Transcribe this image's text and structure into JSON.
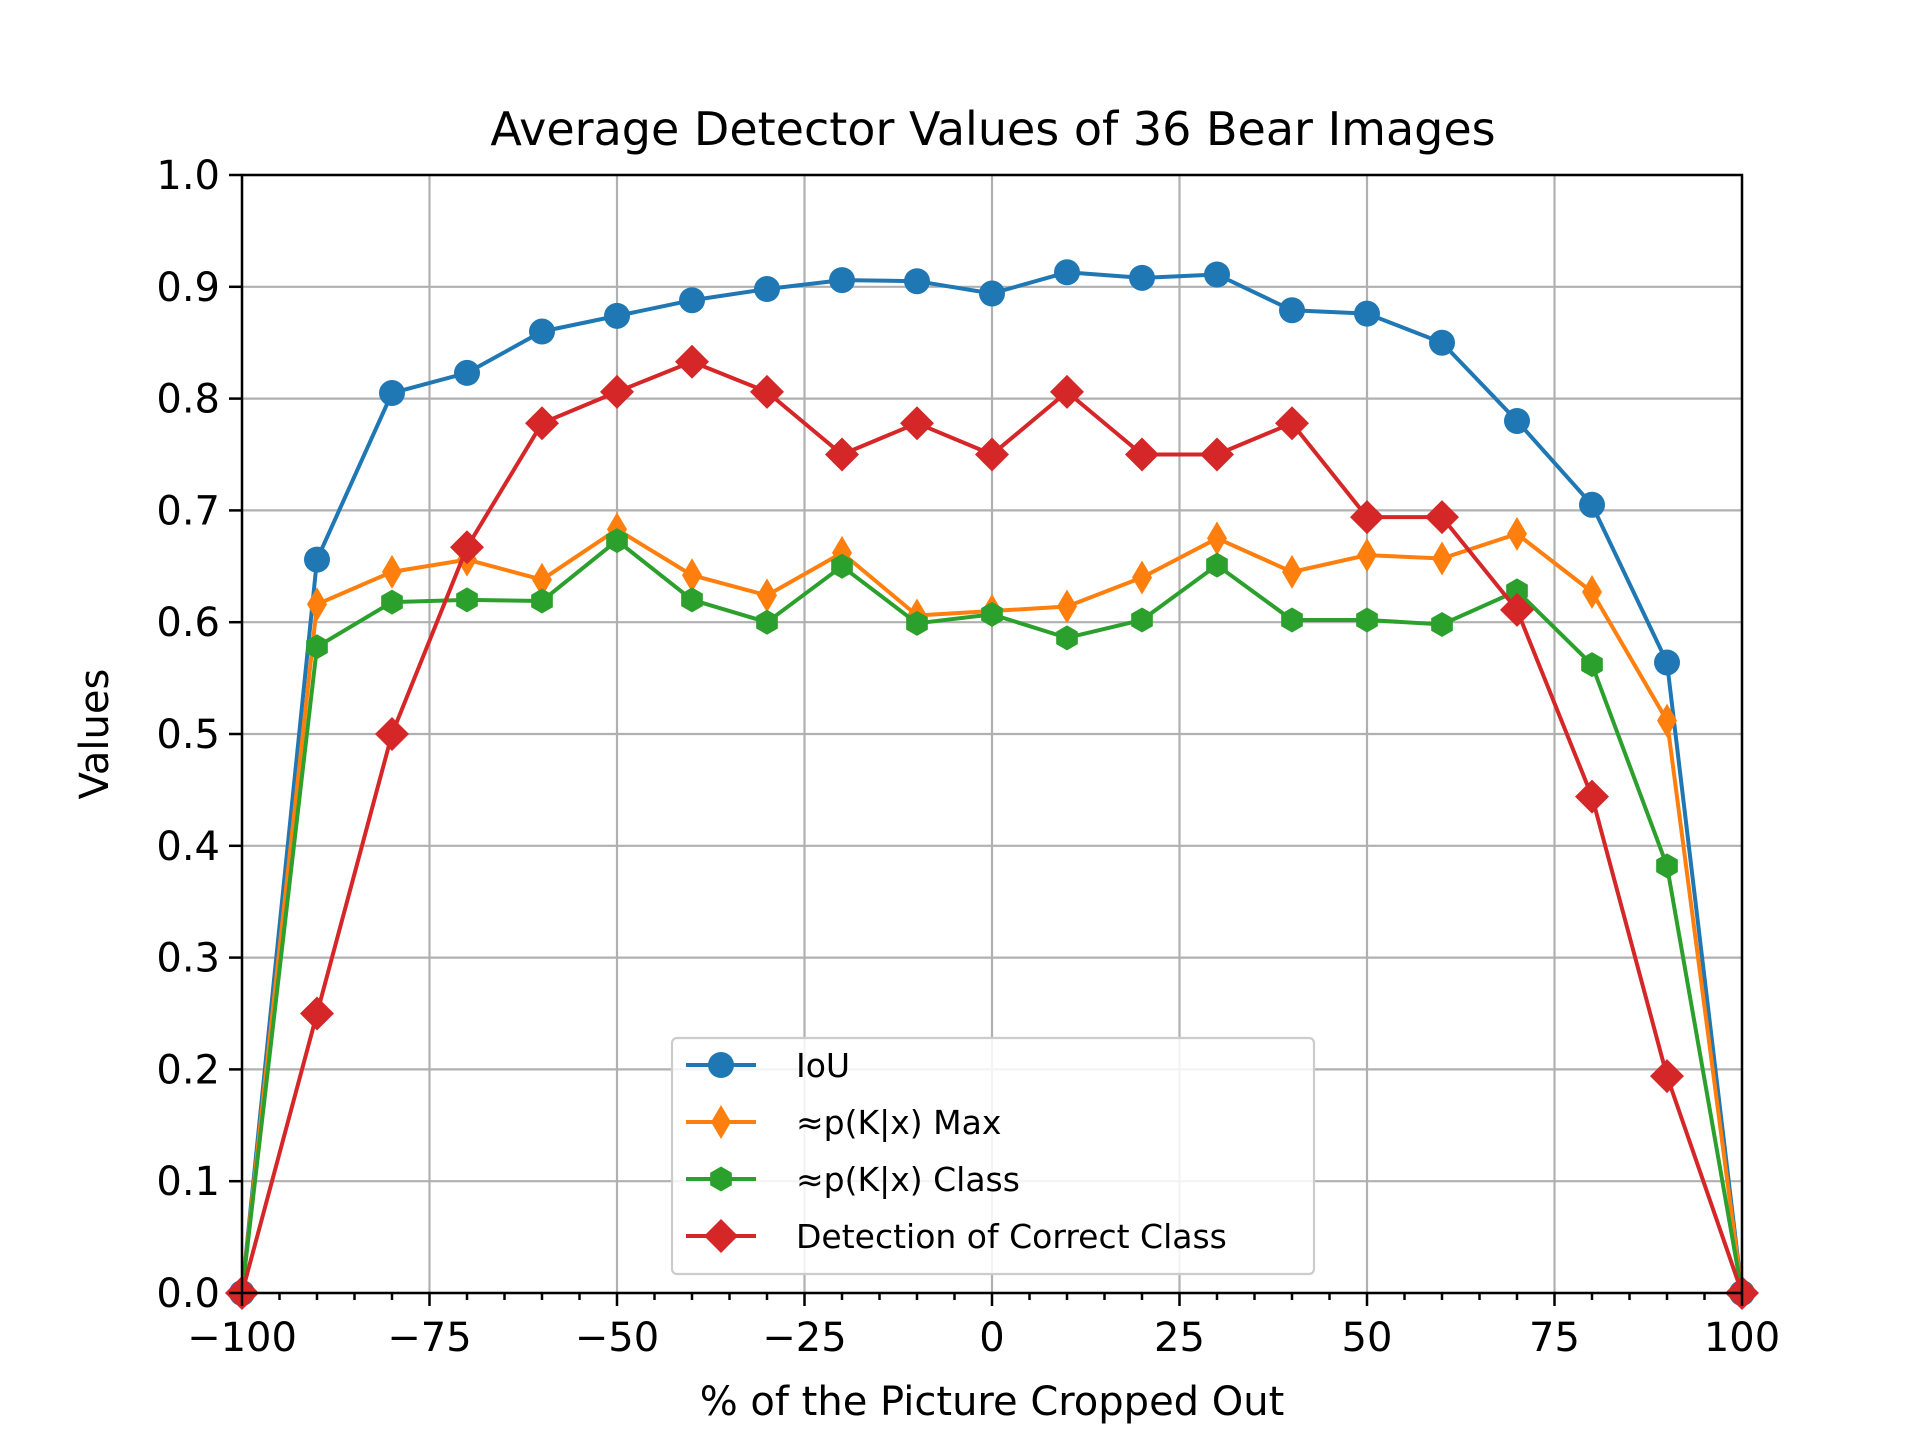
{
  "chart_data": {
    "type": "line",
    "title": "Average Detector Values of 36 Bear Images",
    "xlabel": "% of the Picture Cropped Out",
    "ylabel": "Values",
    "xlim": [
      -100,
      100
    ],
    "ylim": [
      0.0,
      1.0
    ],
    "xticks": [
      -100,
      -75,
      -50,
      -25,
      0,
      25,
      50,
      75,
      100
    ],
    "xtick_labels": [
      "−100",
      "−75",
      "−50",
      "−25",
      "0",
      "25",
      "50",
      "75",
      "100"
    ],
    "yticks": [
      0.0,
      0.1,
      0.2,
      0.3,
      0.4,
      0.5,
      0.6,
      0.7,
      0.8,
      0.9,
      1.0
    ],
    "ytick_labels": [
      "0.0",
      "0.1",
      "0.2",
      "0.3",
      "0.4",
      "0.5",
      "0.6",
      "0.7",
      "0.8",
      "0.9",
      "1.0"
    ],
    "grid": true,
    "legend_position": "lower-center",
    "x": [
      -100,
      -90,
      -80,
      -70,
      -60,
      -50,
      -40,
      -30,
      -20,
      -10,
      0,
      10,
      20,
      30,
      40,
      50,
      60,
      70,
      80,
      90,
      100
    ],
    "series": [
      {
        "name": "IoU",
        "color": "#1f77b4",
        "marker": "circle",
        "values": [
          0.0,
          0.656,
          0.805,
          0.823,
          0.86,
          0.874,
          0.888,
          0.898,
          0.906,
          0.905,
          0.894,
          0.913,
          0.908,
          0.911,
          0.879,
          0.876,
          0.85,
          0.78,
          0.705,
          0.564,
          0.0
        ]
      },
      {
        "name": "≈p(K|x) Max",
        "color": "#ff7f0e",
        "marker": "thin-diamond",
        "values": [
          0.0,
          0.616,
          0.645,
          0.656,
          0.638,
          0.683,
          0.642,
          0.624,
          0.662,
          0.606,
          0.61,
          0.614,
          0.64,
          0.675,
          0.645,
          0.66,
          0.657,
          0.679,
          0.627,
          0.512,
          0.0
        ]
      },
      {
        "name": "≈p(K|x) Class",
        "color": "#2ca02c",
        "marker": "hexagon",
        "values": [
          0.0,
          0.578,
          0.618,
          0.62,
          0.619,
          0.673,
          0.62,
          0.6,
          0.65,
          0.599,
          0.607,
          0.586,
          0.602,
          0.651,
          0.602,
          0.602,
          0.598,
          0.628,
          0.562,
          0.382,
          0.0
        ]
      },
      {
        "name": "Detection of Correct Class",
        "color": "#d62728",
        "marker": "diamond",
        "values": [
          0.0,
          0.25,
          0.5,
          0.667,
          0.778,
          0.806,
          0.833,
          0.806,
          0.75,
          0.778,
          0.75,
          0.806,
          0.75,
          0.75,
          0.778,
          0.694,
          0.694,
          0.611,
          0.444,
          0.194,
          0.0
        ]
      }
    ]
  }
}
